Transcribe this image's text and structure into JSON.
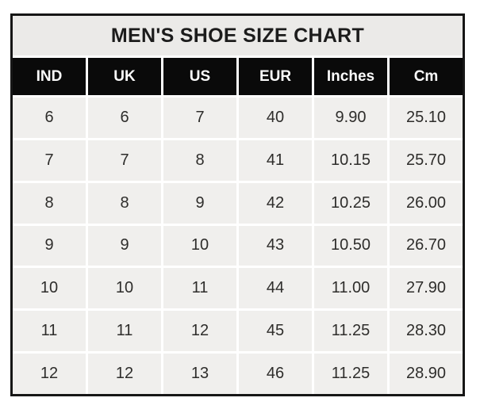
{
  "title": "MEN'S SHOE SIZE CHART",
  "table": {
    "columns": [
      "IND",
      "UK",
      "US",
      "EUR",
      "Inches",
      "Cm"
    ],
    "rows": [
      [
        "6",
        "6",
        "7",
        "40",
        "9.90",
        "25.10"
      ],
      [
        "7",
        "7",
        "8",
        "41",
        "10.15",
        "25.70"
      ],
      [
        "8",
        "8",
        "9",
        "42",
        "10.25",
        "26.00"
      ],
      [
        "9",
        "9",
        "10",
        "43",
        "10.50",
        "26.70"
      ],
      [
        "10",
        "10",
        "11",
        "44",
        "11.00",
        "27.90"
      ],
      [
        "11",
        "11",
        "12",
        "45",
        "11.25",
        "28.30"
      ],
      [
        "12",
        "12",
        "13",
        "46",
        "11.25",
        "28.90"
      ]
    ]
  },
  "chart_data": {
    "type": "table",
    "title": "MEN'S SHOE SIZE CHART",
    "columns": [
      "IND",
      "UK",
      "US",
      "EUR",
      "Inches",
      "Cm"
    ],
    "rows": [
      [
        6,
        6,
        7,
        40,
        9.9,
        25.1
      ],
      [
        7,
        7,
        8,
        41,
        10.15,
        25.7
      ],
      [
        8,
        8,
        9,
        42,
        10.25,
        26.0
      ],
      [
        9,
        9,
        10,
        43,
        10.5,
        26.7
      ],
      [
        10,
        10,
        11,
        44,
        11.0,
        27.9
      ],
      [
        11,
        11,
        12,
        45,
        11.25,
        28.3
      ],
      [
        12,
        12,
        13,
        46,
        11.25,
        28.9
      ]
    ]
  },
  "colors": {
    "header_bg": "#0a0a0a",
    "header_text": "#fbfbfb",
    "cell_bg": "#f0efed",
    "title_bg": "#ebeae8",
    "border": "#161616",
    "gridline": "#ffffff",
    "page_bg": "#ffffff"
  }
}
